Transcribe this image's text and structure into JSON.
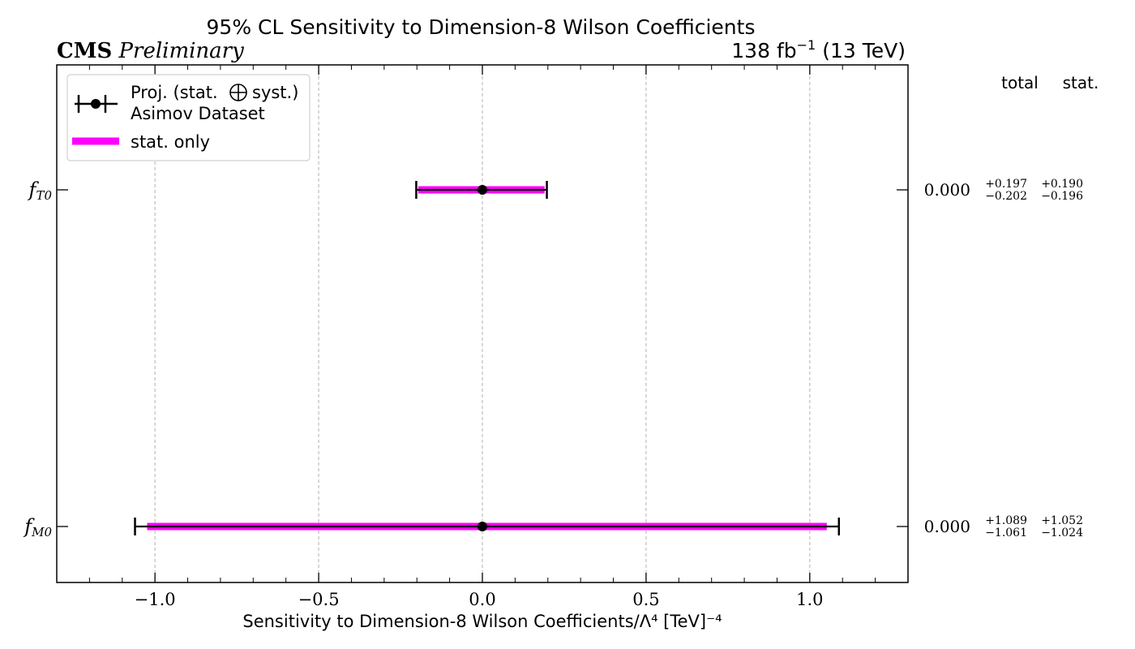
{
  "header": {
    "title": "95% CL Sensitivity to Dimension-8 Wilson Coefficients",
    "experiment": "CMS",
    "status": "Preliminary",
    "lumi_value": "138 fb",
    "lumi_exp": "−1",
    "energy": "(13 TeV)"
  },
  "columns": {
    "total": "total",
    "stat": "stat."
  },
  "legend": {
    "entry1_line1_pre": "Proj. (stat.",
    "entry1_line1_post": "syst.)",
    "entry1_line2": "Asimov Dataset",
    "entry2": "stat. only"
  },
  "colors": {
    "stat_only": "#ff00ff",
    "projection": "#000000",
    "grid": "#b0b0b0"
  },
  "chart_data": {
    "type": "errorbar",
    "title": "95% CL Sensitivity to Dimension-8 Wilson Coefficients",
    "xlabel": "Sensitivity to Dimension-8 Wilson Coefficients/Λ⁴ [TeV]⁻⁴",
    "xlim": [
      -1.3,
      1.3
    ],
    "xticks": [
      -1.0,
      -0.5,
      0.0,
      0.5,
      1.0
    ],
    "xtick_labels": [
      "−1.0",
      "−0.5",
      "0.0",
      "0.5",
      "1.0"
    ],
    "grid": "vertical dashed",
    "legend_position": "top-left",
    "categories": [
      {
        "name": "f",
        "sub": "T0",
        "central": "0.000",
        "value": 0.0,
        "total_up": 0.197,
        "total_down": 0.202,
        "stat_up": 0.19,
        "stat_down": 0.196,
        "total_up_label": "+0.197",
        "total_down_label": "−0.202",
        "stat_up_label": "+0.190",
        "stat_down_label": "−0.196"
      },
      {
        "name": "f",
        "sub": "M0",
        "central": "0.000",
        "value": 0.0,
        "total_up": 1.089,
        "total_down": 1.061,
        "stat_up": 1.052,
        "stat_down": 1.024,
        "total_up_label": "+1.089",
        "total_down_label": "−1.061",
        "stat_up_label": "+1.052",
        "stat_down_label": "−1.024"
      }
    ]
  }
}
